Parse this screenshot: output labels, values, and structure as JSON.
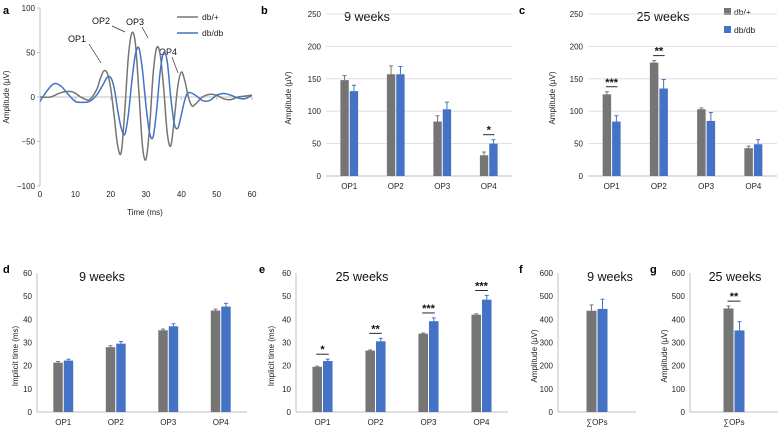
{
  "colors": {
    "dbplus": "#757575",
    "dbdb": "#4472c4"
  },
  "legend": {
    "dbplus": "db/+",
    "dbdb": "db/db"
  },
  "chart_data": [
    {
      "panel": "a",
      "type": "line",
      "xlabel": "Time (ms)",
      "ylabel": "Amplitude (µV)",
      "xlim": [
        0,
        60
      ],
      "ylim": [
        -100,
        100
      ],
      "xticks": [
        "0",
        "10",
        "20",
        "30",
        "40",
        "50",
        "60"
      ],
      "yticks": [
        "100",
        "50",
        "0",
        "−50",
        "−100"
      ],
      "annotations": [
        "OP1",
        "OP2",
        "OP3",
        "OP4"
      ],
      "series": [
        {
          "name": "db/+",
          "x": [
            0,
            3,
            6,
            9,
            12,
            14,
            16,
            17,
            18,
            19,
            20,
            21,
            22,
            23,
            24,
            25,
            26,
            27,
            28,
            29,
            30,
            31,
            32,
            33,
            34,
            35,
            36,
            37,
            38,
            39,
            40,
            41,
            42,
            43,
            44,
            46,
            48,
            50,
            52,
            54,
            56,
            58,
            60
          ],
          "y": [
            0,
            0,
            5,
            6,
            -1,
            -3,
            8,
            20,
            29,
            27,
            10,
            -22,
            -55,
            -62,
            -15,
            45,
            72,
            60,
            5,
            -55,
            -70,
            -35,
            25,
            55,
            48,
            10,
            -40,
            -55,
            -25,
            12,
            28,
            18,
            0,
            -10,
            -8,
            0,
            3,
            2,
            -2,
            -3,
            0,
            1,
            2
          ]
        },
        {
          "name": "db/db",
          "x": [
            0,
            2,
            4,
            6,
            8,
            10,
            12,
            14,
            16,
            18,
            19,
            20,
            21,
            22,
            23,
            24,
            25,
            26,
            27,
            28,
            29,
            30,
            31,
            32,
            33,
            34,
            35,
            36,
            37,
            38,
            39,
            40,
            41,
            42,
            44,
            46,
            48,
            50,
            52,
            54,
            56,
            58,
            60
          ],
          "y": [
            -5,
            7,
            15,
            12,
            3,
            -5,
            -6,
            -5,
            2,
            15,
            22,
            22,
            10,
            -15,
            -35,
            -42,
            -20,
            18,
            48,
            55,
            30,
            -10,
            -40,
            -45,
            -15,
            28,
            50,
            40,
            0,
            -30,
            -35,
            -20,
            -3,
            5,
            2,
            -4,
            -4,
            2,
            4,
            2,
            -1,
            -2,
            2
          ]
        }
      ]
    },
    {
      "panel": "b",
      "type": "bar",
      "title": "9 weeks",
      "categories": [
        "OP1",
        "OP2",
        "OP3",
        "OP4"
      ],
      "ylabel": "Amplitude (µV)",
      "ylim": [
        0,
        250
      ],
      "yticks": [
        "250",
        "200",
        "150",
        "100",
        "50",
        "0"
      ],
      "series": [
        {
          "name": "db/+",
          "values": [
            148,
            157,
            84,
            32
          ],
          "errors": [
            7,
            13,
            9,
            5
          ]
        },
        {
          "name": "db/db",
          "values": [
            131,
            157,
            103,
            50
          ],
          "errors": [
            9,
            12,
            11,
            6
          ]
        }
      ],
      "significance": [
        {
          "category": "OP4",
          "label": "*"
        }
      ]
    },
    {
      "panel": "c",
      "type": "bar",
      "title": "25 weeks",
      "categories": [
        "OP1",
        "OP2",
        "OP3",
        "OP4"
      ],
      "ylabel": "Amplitude (µV)",
      "ylim": [
        0,
        250
      ],
      "yticks": [
        "250",
        "200",
        "150",
        "100",
        "50",
        "0"
      ],
      "series": [
        {
          "name": "db/+",
          "values": [
            126,
            175,
            103,
            43
          ],
          "errors": [
            4,
            3,
            2,
            3
          ]
        },
        {
          "name": "db/db",
          "values": [
            84,
            135,
            85,
            49
          ],
          "errors": [
            9,
            14,
            13,
            7
          ]
        }
      ],
      "significance": [
        {
          "category": "OP1",
          "label": "***"
        },
        {
          "category": "OP2",
          "label": "**"
        }
      ]
    },
    {
      "panel": "d",
      "type": "bar",
      "title": "9 weeks",
      "categories": [
        "OP1",
        "OP2",
        "OP3",
        "OP4"
      ],
      "ylabel": "Implicit time (ms)",
      "ylim": [
        0,
        60
      ],
      "yticks": [
        "60",
        "50",
        "40",
        "30",
        "20",
        "10",
        "0"
      ],
      "series": [
        {
          "name": "db/+",
          "values": [
            21.3,
            28,
            35.3,
            43.8
          ],
          "errors": [
            0.5,
            0.6,
            0.5,
            0.6
          ]
        },
        {
          "name": "db/db",
          "values": [
            22.2,
            29.5,
            37,
            45.5
          ],
          "errors": [
            0.6,
            0.9,
            1.1,
            1.4
          ]
        }
      ],
      "significance": []
    },
    {
      "panel": "e",
      "type": "bar",
      "title": "25 weeks",
      "categories": [
        "OP1",
        "OP2",
        "OP3",
        "OP4"
      ],
      "ylabel": "Implicit time (ms)",
      "ylim": [
        0,
        60
      ],
      "yticks": [
        "60",
        "50",
        "40",
        "30",
        "20",
        "10",
        "0"
      ],
      "series": [
        {
          "name": "db/+",
          "values": [
            19.5,
            26.5,
            33.8,
            42
          ],
          "errors": [
            0.3,
            0.3,
            0.3,
            0.4
          ]
        },
        {
          "name": "db/db",
          "values": [
            22,
            30.5,
            39.2,
            48.5
          ],
          "errors": [
            0.8,
            1.3,
            1.4,
            1.8
          ]
        }
      ],
      "significance": [
        {
          "category": "OP1",
          "label": "*"
        },
        {
          "category": "OP2",
          "label": "**"
        },
        {
          "category": "OP3",
          "label": "***"
        },
        {
          "category": "OP4",
          "label": "***"
        }
      ]
    },
    {
      "panel": "f",
      "type": "bar",
      "title": "9 weeks",
      "categories": [
        "∑OPs"
      ],
      "ylabel": "Amplitude (µV)",
      "ylim": [
        0,
        600
      ],
      "yticks": [
        "600",
        "500",
        "400",
        "300",
        "200",
        "100",
        "0"
      ],
      "series": [
        {
          "name": "db/+",
          "values": [
            437
          ],
          "errors": [
            25
          ]
        },
        {
          "name": "db/db",
          "values": [
            445
          ],
          "errors": [
            42
          ]
        }
      ],
      "significance": []
    },
    {
      "panel": "g",
      "type": "bar",
      "title": "25 weeks",
      "categories": [
        "∑OPs"
      ],
      "ylabel": "Amplitude (µV)",
      "ylim": [
        0,
        600
      ],
      "yticks": [
        "600",
        "500",
        "400",
        "300",
        "200",
        "100",
        "0"
      ],
      "series": [
        {
          "name": "db/+",
          "values": [
            447
          ],
          "errors": [
            10
          ]
        },
        {
          "name": "db/db",
          "values": [
            352
          ],
          "errors": [
            38
          ]
        }
      ],
      "significance": [
        {
          "category": "∑OPs",
          "label": "**"
        }
      ]
    }
  ]
}
